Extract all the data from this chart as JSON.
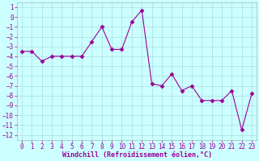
{
  "x": [
    0,
    1,
    2,
    3,
    4,
    5,
    6,
    7,
    8,
    9,
    10,
    11,
    12,
    13,
    14,
    15,
    16,
    17,
    18,
    19,
    20,
    21,
    22,
    23
  ],
  "y": [
    -3.5,
    -3.5,
    -4.5,
    -4.0,
    -4.0,
    -4.0,
    -4.0,
    -2.5,
    -1.0,
    -3.3,
    -3.3,
    -0.5,
    0.7,
    -6.8,
    -7.0,
    -5.8,
    -7.5,
    -7.0,
    -8.5,
    -8.5,
    -8.5,
    -7.5,
    -11.5,
    -7.8
  ],
  "line_color": "#990099",
  "marker": "D",
  "marker_size": 2.5,
  "bg_color": "#ccffff",
  "grid_color": "#aadddd",
  "xlabel": "Windchill (Refroidissement éolien,°C)",
  "xlabel_fontsize": 6.0,
  "ylim": [
    -12.5,
    1.5
  ],
  "xlim": [
    -0.5,
    23.5
  ],
  "yticks": [
    1,
    0,
    -1,
    -2,
    -3,
    -4,
    -5,
    -6,
    -7,
    -8,
    -9,
    -10,
    -11,
    -12
  ],
  "xticks": [
    0,
    1,
    2,
    3,
    4,
    5,
    6,
    7,
    8,
    9,
    10,
    11,
    12,
    13,
    14,
    15,
    16,
    17,
    18,
    19,
    20,
    21,
    22,
    23
  ],
  "tick_fontsize": 5.5,
  "tick_color": "#990099",
  "spine_color": "#99bbbb"
}
